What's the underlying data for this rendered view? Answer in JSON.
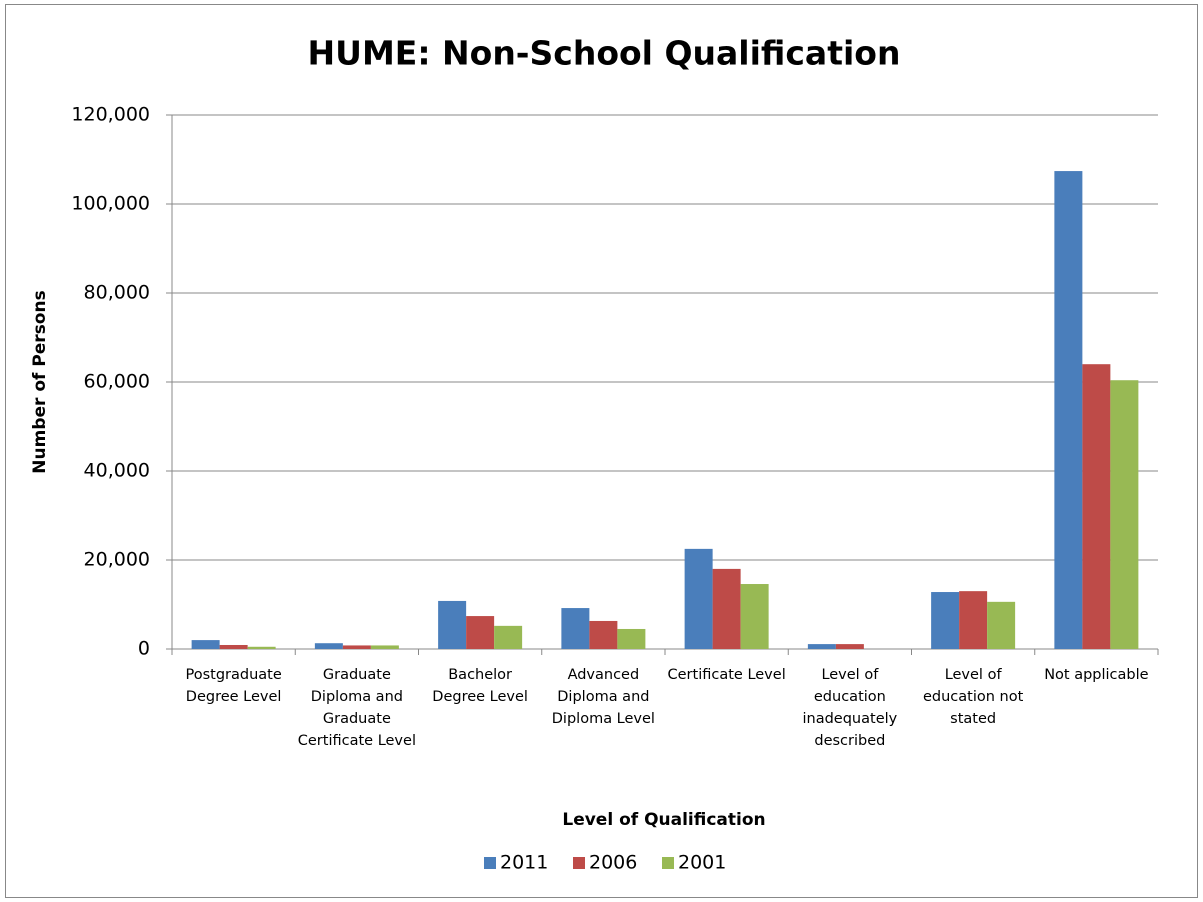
{
  "chart_data": {
    "type": "bar",
    "title": "HUME: Non-School Qualification",
    "x_label": "Level of Qualification",
    "y_label": "Number of Persons",
    "categories": [
      "Postgraduate Degree Level",
      "Graduate Diploma and Graduate Certificate Level",
      "Bachelor Degree Level",
      "Advanced Diploma and Diploma Level",
      "Certificate Level",
      "Level of education inadequately described",
      "Level of education not stated",
      "Not applicable"
    ],
    "series": [
      {
        "name": "2011",
        "color": "#4a7ebb",
        "values": [
          2000,
          1300,
          10800,
          9200,
          22500,
          1100,
          12800,
          107400
        ]
      },
      {
        "name": "2006",
        "color": "#be4b48",
        "values": [
          900,
          800,
          7400,
          6300,
          18000,
          1100,
          13000,
          64000
        ]
      },
      {
        "name": "2001",
        "color": "#98b954",
        "values": [
          500,
          800,
          5200,
          4500,
          14600,
          0,
          10600,
          60400
        ]
      }
    ],
    "ylim": [
      0,
      120000
    ],
    "yticks": [
      0,
      {
        "value": 20000,
        "label": "20,000"
      },
      {
        "value": 40000,
        "label": "40,000"
      },
      {
        "value": 60000,
        "label": "60,000"
      },
      {
        "value": 80000,
        "label": "80,000"
      },
      {
        "value": 100000,
        "label": "100,000"
      },
      {
        "value": 120000,
        "label": "120,000"
      }
    ],
    "grid": true,
    "legend": "bottom"
  }
}
